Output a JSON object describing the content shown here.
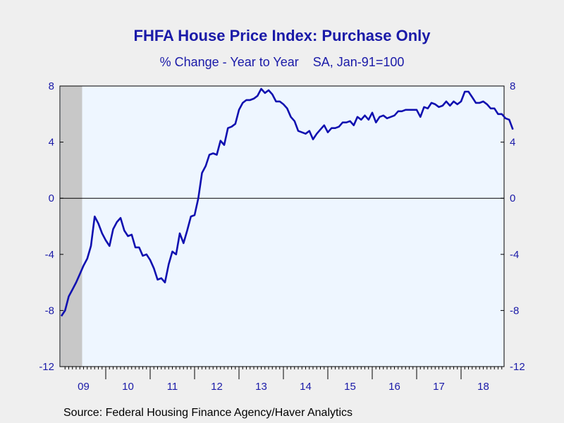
{
  "title": "FHFA House Price Index: Purchase Only",
  "subtitle": "% Change - Year to Year    SA, Jan-91=100",
  "source": "Source:  Federal Housing Finance Agency/Haver Analytics",
  "colors": {
    "line": "#1010b0",
    "plot_bg": "#eef6ff",
    "recession": "#c8c8c8",
    "text": "#1a1aa8"
  },
  "chart_data": {
    "type": "line",
    "title": "FHFA House Price Index: Purchase Only",
    "subtitle": "% Change - Year to Year    SA, Jan-91=100",
    "ylim": [
      -12,
      8
    ],
    "yticks": [
      "8",
      "4",
      "0",
      "-4",
      "-8",
      "-12"
    ],
    "right_axis": true,
    "xtick_labels": [
      "09",
      "10",
      "11",
      "12",
      "13",
      "14",
      "15",
      "16",
      "17",
      "18"
    ],
    "zero_line": true,
    "recession_shading": {
      "start": "2009-01",
      "end": "2009-06"
    },
    "series": [
      {
        "frequency": "monthly",
        "start": "2009-01",
        "values": [
          -8.4,
          -8.0,
          -7.0,
          -6.5,
          -6.0,
          -5.4,
          -4.8,
          -4.3,
          -3.4,
          -1.3,
          -1.8,
          -2.5,
          -3.0,
          -3.4,
          -2.2,
          -1.7,
          -1.4,
          -2.3,
          -2.7,
          -2.6,
          -3.5,
          -3.5,
          -4.1,
          -4.0,
          -4.4,
          -5.0,
          -5.8,
          -5.7,
          -6.0,
          -4.7,
          -3.8,
          -4.0,
          -2.5,
          -3.2,
          -2.3,
          -1.3,
          -1.2,
          0.0,
          1.8,
          2.3,
          3.1,
          3.2,
          3.1,
          4.1,
          3.8,
          5.0,
          5.1,
          5.3,
          6.3,
          6.8,
          7.0,
          7.0,
          7.1,
          7.3,
          7.8,
          7.5,
          7.7,
          7.4,
          6.9,
          6.9,
          6.7,
          6.4,
          5.8,
          5.5,
          4.8,
          4.7,
          4.6,
          4.8,
          4.2,
          4.6,
          4.9,
          5.2,
          4.7,
          5.0,
          5.0,
          5.1,
          5.4,
          5.4,
          5.5,
          5.2,
          5.8,
          5.6,
          5.9,
          5.6,
          6.1,
          5.4,
          5.8,
          5.9,
          5.7,
          5.8,
          5.9,
          6.2,
          6.2,
          6.3,
          6.3,
          6.3,
          6.3,
          5.8,
          6.5,
          6.4,
          6.8,
          6.7,
          6.5,
          6.6,
          6.9,
          6.6,
          6.9,
          6.7,
          6.9,
          7.6,
          7.6,
          7.2,
          6.8,
          6.8,
          6.9,
          6.7,
          6.4,
          6.4,
          6.0,
          6.0,
          5.7,
          5.6,
          4.9
        ]
      }
    ]
  }
}
